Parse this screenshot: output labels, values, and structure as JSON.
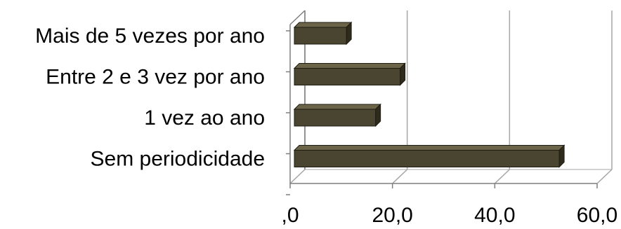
{
  "chart_data": {
    "type": "bar",
    "orientation": "horizontal",
    "style": "3d",
    "categories": [
      "Sem periodicidade",
      "1 vez ao ano",
      "Entre 2 e 3 vez por ano",
      "Mais de 5 vezes por ano"
    ],
    "values": [
      52.6,
      16.7,
      21.5,
      11.0
    ],
    "xlim": [
      0,
      60
    ],
    "xticks": [
      ",0",
      "20,0",
      "40,0",
      "60,0"
    ],
    "grid": true,
    "legend": "none",
    "title": "",
    "xlabel": "",
    "ylabel": ""
  },
  "colors": {
    "bar_front": "#4a4530",
    "bar_top": "#6b6448",
    "bar_side": "#2e2a1c",
    "grid": "#a6a6a6",
    "axis": "#7f7f7f"
  }
}
